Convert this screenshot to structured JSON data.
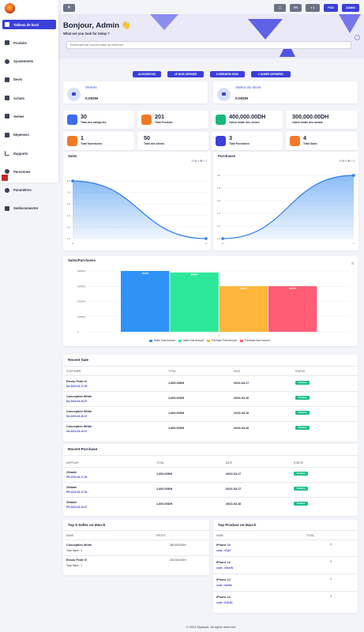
{
  "sidebar": {
    "items": [
      {
        "label": "Tableau de bord",
        "active": true
      },
      {
        "label": "Produits"
      },
      {
        "label": "Ajustements"
      },
      {
        "label": "Devis"
      },
      {
        "label": "Achats"
      },
      {
        "label": "Ventes"
      },
      {
        "label": "Dépenses"
      },
      {
        "label": "Rapports"
      },
      {
        "label": "Personnes"
      },
      {
        "label": "Paramètres"
      },
      {
        "label": "Sedisconnector"
      }
    ]
  },
  "topbar": {
    "menu_toggle": "✕",
    "buttons": [
      "⛶",
      "FR",
      "● 1",
      "POS",
      "ADMIN"
    ]
  },
  "header": {
    "greeting": "Bonjour, Admin 👋",
    "subtitle": "What are you look for today ?",
    "search_placeholder": "Recherche par nom et codes ou référence"
  },
  "actions": [
    "AUJOURD'HUI",
    "LE MOIS DERNIER",
    "6 DERNIERS MOIS",
    "L'ANNÉE DERNIÈRE"
  ],
  "summary": {
    "sales_label": "Ventes",
    "sales_value": "0.00DH",
    "stock_label": "Valeur du stock",
    "stock_value": "0.00DH"
  },
  "stats": [
    {
      "value": "30",
      "label": "Total des catégories",
      "color": "#3b6cf0"
    },
    {
      "value": "201",
      "label": "Total Produits",
      "color": "#f07a28"
    },
    {
      "value": "400,000.00DH",
      "label": "Valeur totale des ventes",
      "color": "#18b87a"
    },
    {
      "value": "300,000.00DH",
      "label": "Valeur totale des achats",
      "color": ""
    },
    {
      "value": "1",
      "label": "Total fournisseur",
      "color": "#f07a28"
    },
    {
      "value": "50",
      "label": "Total des clients",
      "color": ""
    },
    {
      "value": "3",
      "label": "Total Purchases",
      "color": "#3b3fd8"
    },
    {
      "value": "4",
      "label": "Total Sales",
      "color": "#f07a28"
    }
  ],
  "chart_data": [
    {
      "type": "area",
      "title": "Sales",
      "x": [
        0,
        1
      ],
      "values": [
        2,
        1
      ],
      "ylim": [
        1,
        2
      ],
      "xticks": [
        "0",
        "1"
      ],
      "yticks": [
        "2.0",
        "1.8",
        "1.6",
        "1.4",
        "1.2",
        "1.0"
      ],
      "toolbar": "⊖⊕⌕✥⌂≡",
      "color": "#3d8ff0"
    },
    {
      "type": "area",
      "title": "Purchases",
      "x": [
        0,
        1
      ],
      "values": [
        1,
        2
      ],
      "ylim": [
        1,
        2
      ],
      "xticks": [
        "0",
        "1"
      ],
      "yticks": [
        "2.0",
        "1.8",
        "1.6",
        "1.4",
        "1.2",
        "1.0"
      ],
      "toolbar": "⊖⊕⌕✥⌂≡",
      "color": "#3d8ff0"
    },
    {
      "type": "bar",
      "title": "Sales/Purchases",
      "categories": [
        "0"
      ],
      "ylim": [
        0,
        400000
      ],
      "yticks": [
        "400000",
        "300000",
        "200000",
        "100000",
        "0"
      ],
      "menu": "≡",
      "series": [
        {
          "name": "Sales Total Amount",
          "values": [
            400000
          ],
          "label": "400000",
          "color": "#2e93f5"
        },
        {
          "name": "Sales Due Amount",
          "values": [
            390000
          ],
          "label": "390000",
          "color": "#2ee89a"
        },
        {
          "name": "Purchase Total Amount",
          "values": [
            300000
          ],
          "label": "300000",
          "color": "#fdb53b"
        },
        {
          "name": "Purchase Due Amount",
          "values": [
            300000
          ],
          "label": "300000",
          "color": "#ff5c76"
        }
      ]
    }
  ],
  "recent_sale": {
    "title": "Recent Sale",
    "headers": [
      "CUSTOMER",
      "TOTAL",
      "DATE",
      "STATUS"
    ],
    "rows": [
      {
        "customer": "Electo Fenit IV",
        "ref": "SA-2023-03-17-00",
        "total": "1,600.00DH",
        "date": "2023-03-17",
        "status": "Terminé"
      },
      {
        "customer": "Conception White",
        "ref": "SA-2023-03-16-07",
        "total": "1,600.00DH",
        "date": "2023-03-16",
        "status": "Terminé"
      },
      {
        "customer": "Conception White",
        "ref": "SA-2023-03-16-07",
        "total": "1,600.00DH",
        "date": "2023-03-16",
        "status": "Terminé"
      },
      {
        "customer": "Conception White",
        "ref": "SA-2023-03-16-07",
        "total": "1,600.00DH",
        "date": "2023-03-16",
        "status": "Terminé"
      }
    ]
  },
  "recent_purchase": {
    "title": "Recent Purchase",
    "headers": [
      "SUPPLIER",
      "TOTAL",
      "DATE",
      "STATUS"
    ],
    "rows": [
      {
        "supplier": "Zitlanie",
        "ref": "PR-2023-03-17-00",
        "total": "1,600.00DH",
        "date": "2023-03-17",
        "status": "Terminé"
      },
      {
        "supplier": "Zitlanie",
        "ref": "PR-2023-03-17-00",
        "total": "1,600.00DH",
        "date": "2023-03-17",
        "status": "Terminé"
      },
      {
        "supplier": "Zitlanie",
        "ref": "PR-2023-03-16-07",
        "total": "1,600.00DH",
        "date": "2023-03-16",
        "status": "Terminé"
      }
    ]
  },
  "top_sellers": {
    "title": "Top 5 Seller on March",
    "headers": [
      "NAME",
      "PROFIT"
    ],
    "rows": [
      {
        "name": "Conception White",
        "sub": "Total Sales : 3",
        "profit": "300,000.00DH"
      },
      {
        "name": "Electo Fenit IV",
        "sub": "Total Sales : 1",
        "profit": "100,000.00DH"
      }
    ]
  },
  "top_products": {
    "title": "Top Product on March",
    "headers": [
      "NAME",
      "TOTAL"
    ],
    "rows": [
      {
        "name": "iPhone 12",
        "code": "code : 91jk7",
        "total": "3"
      },
      {
        "name": "iPhone 12",
        "code": "code : eKmrfk",
        "total": "3"
      },
      {
        "name": "iPhone 12",
        "code": "code : kmt0k",
        "total": "3"
      },
      {
        "name": "iPhone 12",
        "code": "code : E1KZK",
        "total": "3"
      }
    ]
  },
  "footer": "© 2023 Mystock. All rights reserved."
}
